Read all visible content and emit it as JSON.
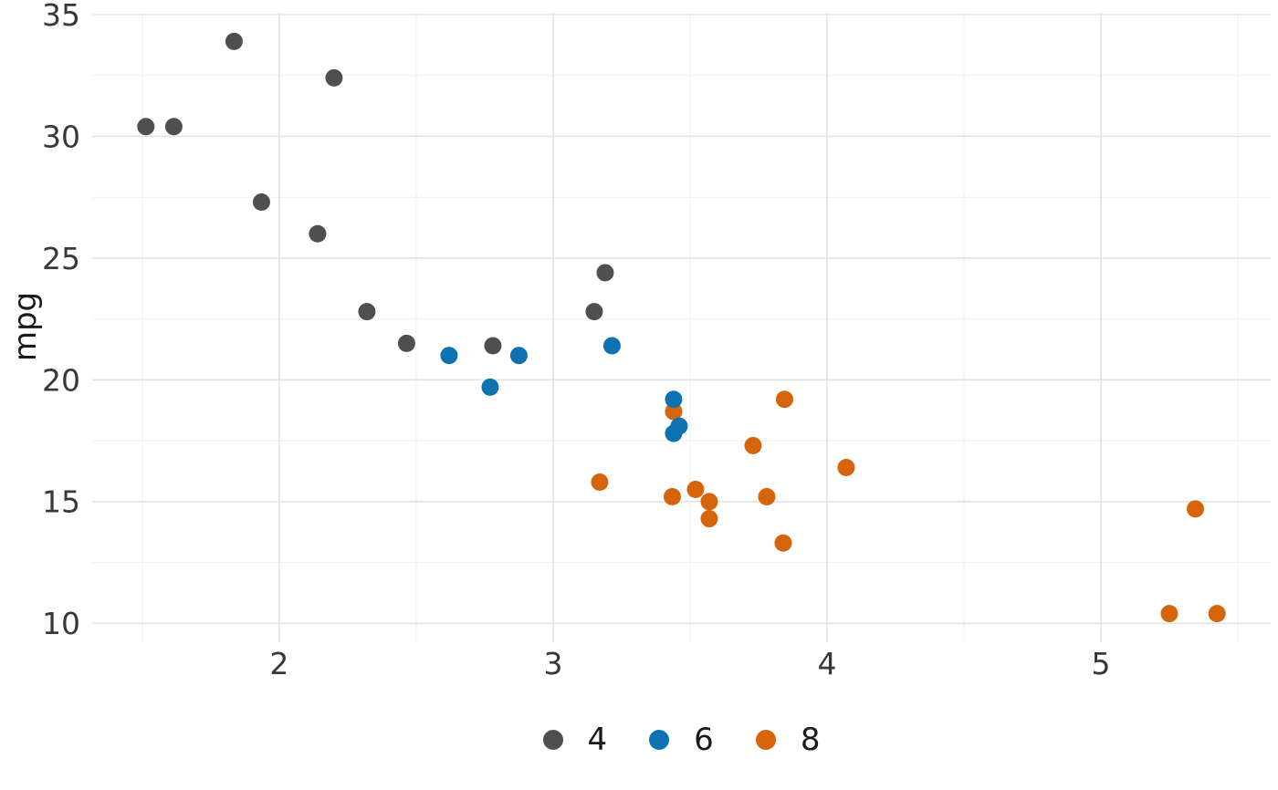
{
  "chart_data": {
    "type": "scatter",
    "title": "",
    "xlabel": "",
    "ylabel": "mpg",
    "grid": true,
    "legend_position": "bottom",
    "xlim": [
      1.317,
      5.62
    ],
    "ylim": [
      9.225,
      35.075
    ],
    "x_major_ticks": [
      2,
      3,
      4,
      5
    ],
    "y_major_ticks": [
      10,
      15,
      20,
      25,
      30,
      35
    ],
    "x_minor_ticks": [
      1.5,
      2.5,
      3.5,
      4.5,
      5.5
    ],
    "y_minor_ticks": [
      12.5,
      17.5,
      22.5,
      27.5,
      32.5
    ],
    "groups": [
      {
        "label": "4",
        "color": "#4f4f4f"
      },
      {
        "label": "6",
        "color": "#0e72b2"
      },
      {
        "label": "8",
        "color": "#d6640a"
      }
    ],
    "points": [
      {
        "x": 2.62,
        "y": 21.0,
        "g": "6"
      },
      {
        "x": 2.875,
        "y": 21.0,
        "g": "6"
      },
      {
        "x": 2.32,
        "y": 22.8,
        "g": "4"
      },
      {
        "x": 3.215,
        "y": 21.4,
        "g": "6"
      },
      {
        "x": 3.44,
        "y": 18.7,
        "g": "8"
      },
      {
        "x": 3.46,
        "y": 18.1,
        "g": "6"
      },
      {
        "x": 3.57,
        "y": 14.3,
        "g": "8"
      },
      {
        "x": 3.19,
        "y": 24.4,
        "g": "4"
      },
      {
        "x": 3.15,
        "y": 22.8,
        "g": "4"
      },
      {
        "x": 3.44,
        "y": 19.2,
        "g": "6"
      },
      {
        "x": 3.44,
        "y": 17.8,
        "g": "6"
      },
      {
        "x": 4.07,
        "y": 16.4,
        "g": "8"
      },
      {
        "x": 3.73,
        "y": 17.3,
        "g": "8"
      },
      {
        "x": 3.78,
        "y": 15.2,
        "g": "8"
      },
      {
        "x": 5.25,
        "y": 10.4,
        "g": "8"
      },
      {
        "x": 5.424,
        "y": 10.4,
        "g": "8"
      },
      {
        "x": 5.345,
        "y": 14.7,
        "g": "8"
      },
      {
        "x": 2.2,
        "y": 32.4,
        "g": "4"
      },
      {
        "x": 1.615,
        "y": 30.4,
        "g": "4"
      },
      {
        "x": 1.835,
        "y": 33.9,
        "g": "4"
      },
      {
        "x": 2.465,
        "y": 21.5,
        "g": "4"
      },
      {
        "x": 3.52,
        "y": 15.5,
        "g": "8"
      },
      {
        "x": 3.435,
        "y": 15.2,
        "g": "8"
      },
      {
        "x": 3.84,
        "y": 13.3,
        "g": "8"
      },
      {
        "x": 3.845,
        "y": 19.2,
        "g": "8"
      },
      {
        "x": 1.935,
        "y": 27.3,
        "g": "4"
      },
      {
        "x": 2.14,
        "y": 26.0,
        "g": "4"
      },
      {
        "x": 1.513,
        "y": 30.4,
        "g": "4"
      },
      {
        "x": 3.17,
        "y": 15.8,
        "g": "8"
      },
      {
        "x": 2.77,
        "y": 19.7,
        "g": "6"
      },
      {
        "x": 3.57,
        "y": 15.0,
        "g": "8"
      },
      {
        "x": 2.78,
        "y": 21.4,
        "g": "4"
      }
    ],
    "style": {
      "background": "#ffffff",
      "grid_major_color": "#e3e3e3",
      "grid_minor_color": "#efefef",
      "tick_label_color": "#383838",
      "axis_title_color": "#1a1a1a",
      "legend_label_color": "#1a1a1a"
    }
  }
}
